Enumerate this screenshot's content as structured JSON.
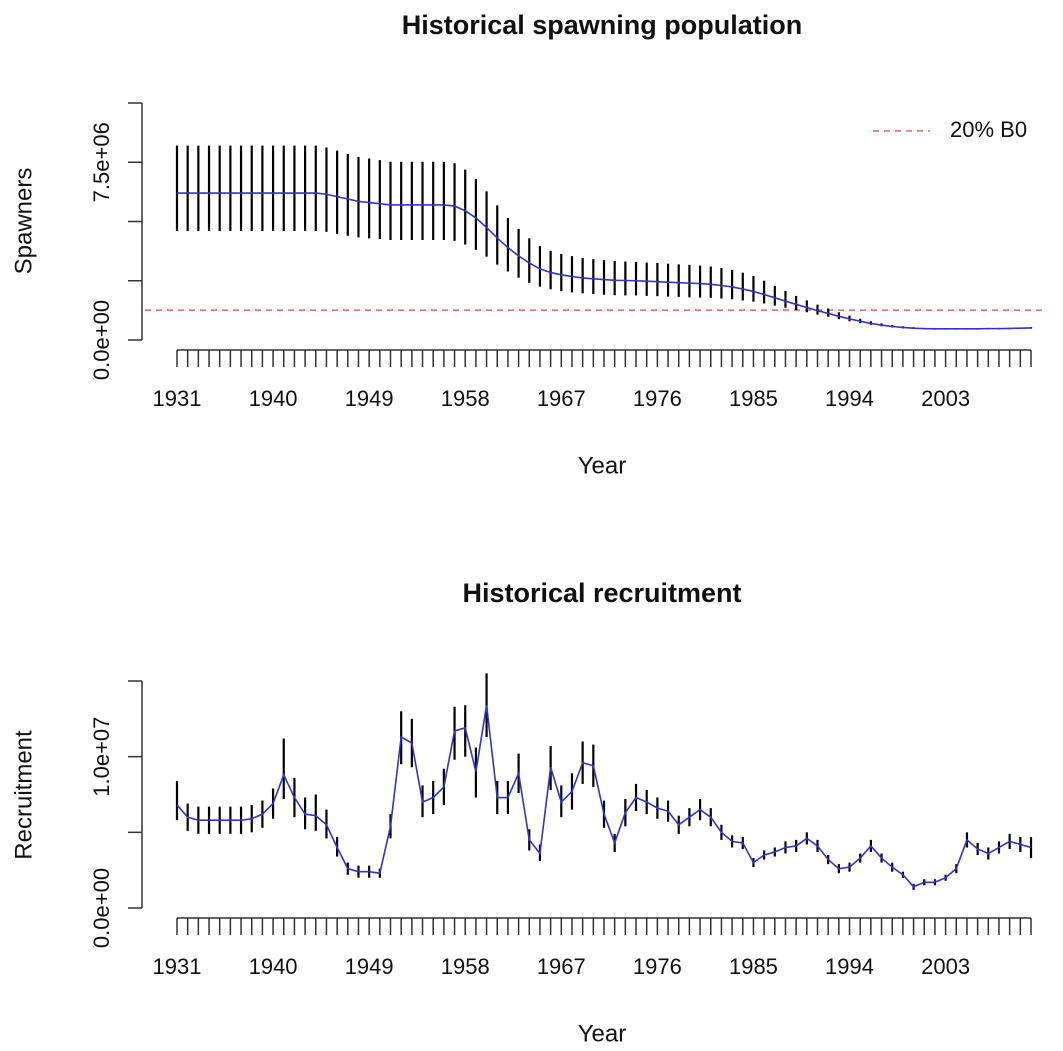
{
  "chart_data": [
    {
      "type": "line",
      "title": "Historical spawning population",
      "xlabel": "Year",
      "ylabel": "Spawners",
      "x": [
        1931,
        1932,
        1933,
        1934,
        1935,
        1936,
        1937,
        1938,
        1939,
        1940,
        1941,
        1942,
        1943,
        1944,
        1945,
        1946,
        1947,
        1948,
        1949,
        1950,
        1951,
        1952,
        1953,
        1954,
        1955,
        1956,
        1957,
        1958,
        1959,
        1960,
        1961,
        1962,
        1963,
        1964,
        1965,
        1966,
        1967,
        1968,
        1969,
        1970,
        1971,
        1972,
        1973,
        1974,
        1975,
        1976,
        1977,
        1978,
        1979,
        1980,
        1981,
        1982,
        1983,
        1984,
        1985,
        1986,
        1987,
        1988,
        1989,
        1990,
        1991,
        1992,
        1993,
        1994,
        1995,
        1996,
        1997,
        1998,
        1999,
        2000,
        2001,
        2002,
        2003,
        2004,
        2005,
        2006,
        2007,
        2008,
        2009,
        2010,
        2011
      ],
      "values": [
        6200000,
        6200000,
        6200000,
        6200000,
        6200000,
        6200000,
        6200000,
        6200000,
        6200000,
        6200000,
        6200000,
        6200000,
        6200000,
        6200000,
        6150000,
        6050000,
        5950000,
        5850000,
        5800000,
        5750000,
        5700000,
        5700000,
        5700000,
        5700000,
        5700000,
        5700000,
        5650000,
        5450000,
        5150000,
        4750000,
        4300000,
        3900000,
        3550000,
        3250000,
        3000000,
        2850000,
        2750000,
        2680000,
        2620000,
        2580000,
        2550000,
        2520000,
        2510000,
        2500000,
        2480000,
        2460000,
        2440000,
        2420000,
        2400000,
        2380000,
        2350000,
        2300000,
        2240000,
        2150000,
        2050000,
        1920000,
        1780000,
        1640000,
        1500000,
        1370000,
        1240000,
        1120000,
        1000000,
        890000,
        790000,
        700000,
        630000,
        570000,
        530000,
        500000,
        480000,
        470000,
        470000,
        470000,
        470000,
        470000,
        480000,
        480000,
        490000,
        500000,
        510000
      ],
      "lower": [
        4600000,
        4600000,
        4600000,
        4600000,
        4600000,
        4600000,
        4600000,
        4600000,
        4600000,
        4600000,
        4600000,
        4600000,
        4600000,
        4600000,
        4560000,
        4480000,
        4400000,
        4330000,
        4290000,
        4260000,
        4220000,
        4220000,
        4220000,
        4220000,
        4220000,
        4220000,
        4180000,
        4030000,
        3810000,
        3520000,
        3180000,
        2890000,
        2630000,
        2410000,
        2250000,
        2140000,
        2060000,
        2010000,
        1970000,
        1940000,
        1910000,
        1890000,
        1880000,
        1880000,
        1860000,
        1850000,
        1830000,
        1820000,
        1800000,
        1790000,
        1780000,
        1750000,
        1720000,
        1670000,
        1620000,
        1540000,
        1450000,
        1360000,
        1260000,
        1170000,
        1070000,
        980000,
        880000,
        790000,
        710000,
        640000,
        580000,
        530000,
        490000,
        470000,
        450000,
        440000,
        440000,
        440000,
        440000,
        440000,
        450000,
        450000,
        460000,
        470000,
        480000
      ],
      "upper": [
        8200000,
        8200000,
        8200000,
        8200000,
        8200000,
        8200000,
        8200000,
        8200000,
        8200000,
        8200000,
        8200000,
        8200000,
        8200000,
        8200000,
        8120000,
        7990000,
        7850000,
        7720000,
        7660000,
        7590000,
        7520000,
        7520000,
        7520000,
        7520000,
        7520000,
        7520000,
        7460000,
        7190000,
        6800000,
        6270000,
        5680000,
        5150000,
        4690000,
        4290000,
        3960000,
        3760000,
        3630000,
        3540000,
        3460000,
        3410000,
        3370000,
        3330000,
        3310000,
        3300000,
        3270000,
        3250000,
        3220000,
        3190000,
        3170000,
        3140000,
        3100000,
        3040000,
        2960000,
        2840000,
        2700000,
        2500000,
        2280000,
        2070000,
        1860000,
        1670000,
        1490000,
        1330000,
        1170000,
        1030000,
        900000,
        790000,
        700000,
        630000,
        580000,
        540000,
        510000,
        500000,
        500000,
        500000,
        500000,
        500000,
        510000,
        510000,
        520000,
        530000,
        540000
      ],
      "color": "#3333cc",
      "error_color": "#000000",
      "xlim": [
        1931,
        2011
      ],
      "xticks": [
        1931,
        1940,
        1949,
        1958,
        1967,
        1976,
        1985,
        1994,
        2003
      ],
      "ylim": [
        0,
        10000000
      ],
      "yticks": [
        {
          "value": 0,
          "label": "0.0e+00"
        },
        {
          "value": 2500000,
          "label": null
        },
        {
          "value": 5000000,
          "label": null
        },
        {
          "value": 7500000,
          "label": "7.5e+06"
        },
        {
          "value": 10000000,
          "label": null
        }
      ],
      "reference": {
        "label": "20% B0",
        "value": 1260000,
        "color": "#e06666"
      },
      "legend": "topright"
    },
    {
      "type": "line",
      "title": "Historical recruitment",
      "xlabel": "Year",
      "ylabel": "Recruitment",
      "x": [
        1931,
        1932,
        1933,
        1934,
        1935,
        1936,
        1937,
        1938,
        1939,
        1940,
        1941,
        1942,
        1943,
        1944,
        1945,
        1946,
        1947,
        1948,
        1949,
        1950,
        1951,
        1952,
        1953,
        1954,
        1955,
        1956,
        1957,
        1958,
        1959,
        1960,
        1961,
        1962,
        1963,
        1964,
        1965,
        1966,
        1967,
        1968,
        1969,
        1970,
        1971,
        1972,
        1973,
        1974,
        1975,
        1976,
        1977,
        1978,
        1979,
        1980,
        1981,
        1982,
        1983,
        1984,
        1985,
        1986,
        1987,
        1988,
        1989,
        1990,
        1991,
        1992,
        1993,
        1994,
        1995,
        1996,
        1997,
        1998,
        1999,
        2000,
        2001,
        2002,
        2003,
        2004,
        2005,
        2006,
        2007,
        2008,
        2009,
        2010,
        2011
      ],
      "values": [
        6800000,
        6000000,
        5800000,
        5800000,
        5800000,
        5800000,
        5800000,
        5900000,
        6200000,
        6900000,
        8800000,
        7300000,
        6200000,
        6100000,
        5500000,
        4000000,
        2600000,
        2400000,
        2400000,
        2300000,
        5400000,
        11300000,
        10900000,
        7000000,
        7300000,
        8000000,
        11700000,
        11900000,
        9000000,
        13400000,
        7300000,
        7300000,
        8900000,
        4500000,
        3600000,
        9300000,
        7000000,
        7700000,
        9600000,
        9400000,
        6200000,
        4300000,
        6300000,
        7300000,
        7000000,
        6600000,
        6400000,
        5500000,
        6000000,
        6500000,
        6000000,
        5000000,
        4400000,
        4300000,
        3000000,
        3500000,
        3700000,
        4000000,
        4100000,
        4600000,
        4100000,
        3200000,
        2600000,
        2700000,
        3300000,
        4100000,
        3300000,
        2700000,
        2200000,
        1400000,
        1700000,
        1700000,
        2000000,
        2600000,
        4500000,
        3900000,
        3600000,
        4000000,
        4400000,
        4200000,
        4000000
      ],
      "lower": [
        5800000,
        5100000,
        4900000,
        4900000,
        4900000,
        4900000,
        4900000,
        5000000,
        5300000,
        5900000,
        7200000,
        6000000,
        5200000,
        5100000,
        4600000,
        3400000,
        2200000,
        2000000,
        2000000,
        2000000,
        4600000,
        9500000,
        9300000,
        6000000,
        6200000,
        6800000,
        9800000,
        10000000,
        7300000,
        11300000,
        6200000,
        6200000,
        7600000,
        3800000,
        3100000,
        7800000,
        6000000,
        6500000,
        8200000,
        8000000,
        5300000,
        3700000,
        5400000,
        6400000,
        6200000,
        5900000,
        5700000,
        4900000,
        5400000,
        5800000,
        5400000,
        4500000,
        4000000,
        3900000,
        2700000,
        3200000,
        3400000,
        3600000,
        3700000,
        4200000,
        3700000,
        2900000,
        2300000,
        2400000,
        3000000,
        3700000,
        3000000,
        2400000,
        2000000,
        1200000,
        1500000,
        1500000,
        1800000,
        2300000,
        4000000,
        3500000,
        3200000,
        3600000,
        3900000,
        3700000,
        3300000
      ],
      "upper": [
        8400000,
        6900000,
        6700000,
        6700000,
        6700000,
        6700000,
        6700000,
        6800000,
        7100000,
        7900000,
        11200000,
        8600000,
        7300000,
        7500000,
        6500000,
        4700000,
        3000000,
        2800000,
        2800000,
        2600000,
        6200000,
        13000000,
        12500000,
        8100000,
        8400000,
        9200000,
        13300000,
        13400000,
        10600000,
        15500000,
        8400000,
        8400000,
        10200000,
        5200000,
        4200000,
        10700000,
        8100000,
        8900000,
        11000000,
        10800000,
        7100000,
        4900000,
        7200000,
        8200000,
        7800000,
        7300000,
        7100000,
        6100000,
        6600000,
        7200000,
        6600000,
        5500000,
        4800000,
        4700000,
        3300000,
        3800000,
        4000000,
        4400000,
        4500000,
        5000000,
        4500000,
        3500000,
        2900000,
        3000000,
        3600000,
        4500000,
        3600000,
        3000000,
        2400000,
        1600000,
        1900000,
        1900000,
        2200000,
        2900000,
        5000000,
        4300000,
        4000000,
        4400000,
        4900000,
        4700000,
        4700000
      ],
      "color": "#3333cc",
      "error_color": "#000000",
      "xlim": [
        1931,
        2011
      ],
      "xticks": [
        1931,
        1940,
        1949,
        1958,
        1967,
        1976,
        1985,
        1994,
        2003
      ],
      "ylim": [
        0,
        15000000
      ],
      "yticks": [
        {
          "value": 0,
          "label": "0.0e+00"
        },
        {
          "value": 5000000,
          "label": null
        },
        {
          "value": 10000000,
          "label": "1.0e+07"
        },
        {
          "value": 15000000,
          "label": null
        }
      ]
    }
  ]
}
